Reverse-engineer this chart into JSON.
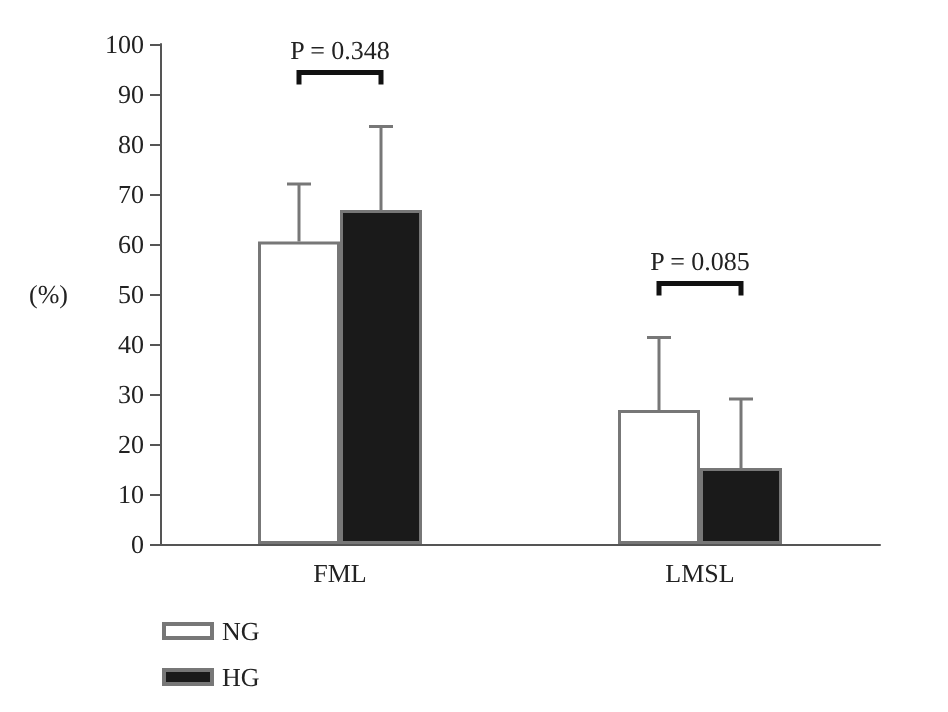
{
  "chart_data": {
    "type": "bar",
    "ylabel": "(%)",
    "categories": [
      "FML",
      "LMSL"
    ],
    "series": [
      {
        "name": "NG",
        "color": "#ffffff",
        "values": [
          60.5,
          26.8
        ],
        "errors": [
          [
            60.5,
            72
          ],
          [
            26.8,
            41.3
          ]
        ]
      },
      {
        "name": "HG",
        "color": "#1a1a1a",
        "values": [
          66.8,
          15.2
        ],
        "errors": [
          [
            66.8,
            83.5
          ],
          [
            15.2,
            29
          ]
        ]
      }
    ],
    "ylim": [
      0,
      100
    ],
    "yticks": [
      0,
      10,
      20,
      30,
      40,
      50,
      60,
      70,
      80,
      90,
      100
    ],
    "grid": false,
    "legend": "bottom left",
    "annotations": [
      "P = 0.348",
      "P = 0.085"
    ]
  }
}
